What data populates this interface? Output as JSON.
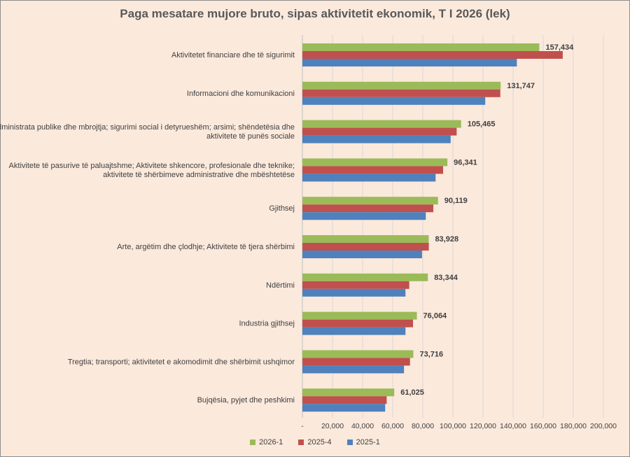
{
  "chart_data": {
    "type": "bar",
    "orientation": "horizontal",
    "title": "Paga mesatare mujore bruto, sipas aktivitetit ekonomik, T I 2026 (lek)",
    "categories": [
      [
        "Aktivitetet financiare dhe të sigurimit"
      ],
      [
        "Informacioni dhe komunikacioni"
      ],
      [
        "Administrata publike dhe mbrojtja; sigurimi social i detyrueshëm; arsimi; shëndetësia dhe",
        "aktivitete të punës sociale"
      ],
      [
        "Aktivitete të pasurive të paluajtshme; Aktivitete shkencore, profesionale dhe teknike;",
        "aktivitete të shërbimeve administrative dhe mbështetëse"
      ],
      [
        "Gjithsej"
      ],
      [
        "Arte, argëtim dhe çlodhje; Aktivitete të tjera shërbimi"
      ],
      [
        "Ndërtimi"
      ],
      [
        "Industria gjithsej"
      ],
      [
        "Tregtia; transporti; aktivitetet e akomodimit dhe shërbimit ushqimor"
      ],
      [
        "Bujqësia, pyjet dhe peshkimi"
      ]
    ],
    "series": [
      {
        "name": "2026-1",
        "color": "#9bbb59",
        "values": [
          157434,
          131747,
          105465,
          96341,
          90119,
          83928,
          83344,
          76064,
          73716,
          61025
        ]
      },
      {
        "name": "2025-4",
        "color": "#c0504d",
        "values": [
          173000,
          131500,
          102500,
          93500,
          87000,
          84000,
          71000,
          73500,
          71500,
          56000
        ]
      },
      {
        "name": "2025-1",
        "color": "#4f81bd",
        "values": [
          142500,
          121500,
          98500,
          88500,
          82000,
          79500,
          68500,
          68500,
          67500,
          55000
        ]
      }
    ],
    "data_labels": [
      "157,434",
      "131,747",
      "105,465",
      "96,341",
      "90,119",
      "83,928",
      "83,344",
      "76,064",
      "73,716",
      "61,025"
    ],
    "xlim": [
      0,
      200000
    ],
    "x_ticks": [
      "-",
      "20,000",
      "40,000",
      "60,000",
      "80,000",
      "100,000",
      "120,000",
      "140,000",
      "160,000",
      "180,000",
      "200,000"
    ],
    "grid": true,
    "legend_position": "bottom"
  }
}
